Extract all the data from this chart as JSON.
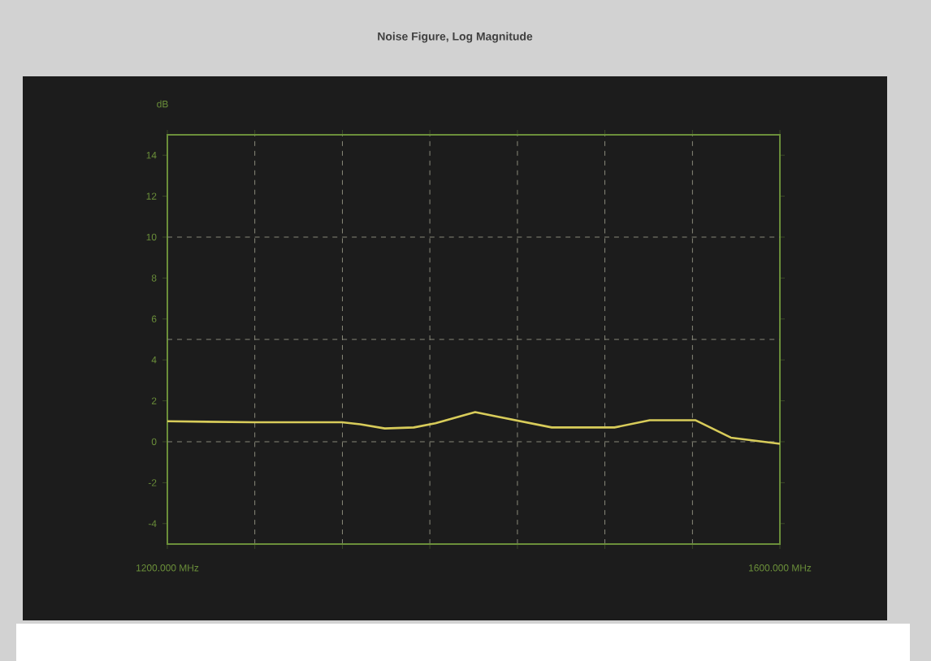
{
  "chart_data": {
    "type": "line",
    "title": "Noise Figure, Log Magnitude",
    "ylabel": "dB",
    "x": [
      1200,
      1257,
      1314,
      1326,
      1342,
      1361,
      1375,
      1401,
      1414,
      1451,
      1492,
      1515,
      1545,
      1568,
      1600
    ],
    "series": [
      {
        "color": "#d8cc5a",
        "values": [
          1.0,
          0.95,
          0.95,
          0.85,
          0.65,
          0.7,
          0.9,
          1.45,
          1.25,
          0.7,
          0.7,
          1.05,
          1.05,
          0.2,
          -0.1
        ]
      }
    ],
    "xlim": [
      1200,
      1600
    ],
    "xticks": [
      {
        "value": 1200,
        "label": "1200.000 MHz"
      },
      {
        "value": 1257.1,
        "label": null
      },
      {
        "value": 1314.3,
        "label": null
      },
      {
        "value": 1371.4,
        "label": null
      },
      {
        "value": 1428.6,
        "label": null
      },
      {
        "value": 1485.7,
        "label": null
      },
      {
        "value": 1542.9,
        "label": null
      },
      {
        "value": 1600,
        "label": "1600.000 MHz"
      }
    ],
    "ylim": [
      -5,
      15
    ],
    "yticks": [
      -4,
      -2,
      0,
      2,
      4,
      6,
      8,
      10,
      12,
      14
    ],
    "grid": "x",
    "ref_lines": [
      {
        "axis": "y",
        "value": 0,
        "line_style": "dashed"
      },
      {
        "axis": "y",
        "value": 5,
        "line_style": "dashed"
      },
      {
        "axis": "y",
        "value": 10,
        "line_style": "dashed"
      }
    ],
    "line_style": "solid",
    "marker": "none"
  }
}
